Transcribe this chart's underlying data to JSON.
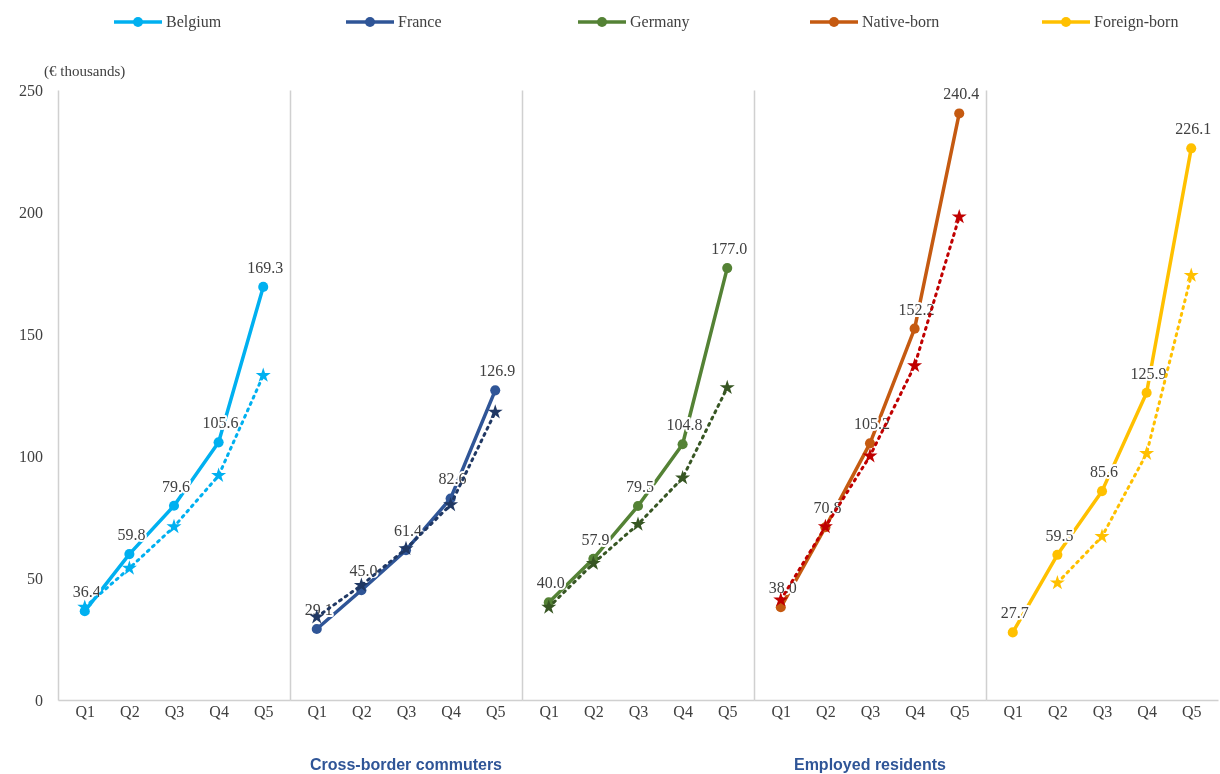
{
  "chart_data": [
    {
      "type": "line",
      "ylabel": "(€ thousands)",
      "categories": [
        "Q1",
        "Q2",
        "Q3",
        "Q4",
        "Q5"
      ],
      "ylim": [
        0,
        250
      ],
      "yticks": [
        0,
        50,
        100,
        150,
        200,
        250
      ],
      "legend": "top",
      "series": [
        {
          "name": "Belgium",
          "color": "#00b0f0",
          "marker": "circle",
          "line_style": "solid",
          "values": [
            36.4,
            59.8,
            79.6,
            105.6,
            169.3
          ],
          "value_labels": [
            "36.4",
            "59.8",
            "79.6",
            "105.6",
            "169.3"
          ]
        },
        {
          "color": "#00b0f0",
          "marker": "star",
          "line_style": "dotted",
          "values": [
            38,
            54,
            71,
            92,
            133
          ]
        }
      ]
    },
    {
      "type": "line",
      "categories": [
        "Q1",
        "Q2",
        "Q3",
        "Q4",
        "Q5"
      ],
      "ylim": [
        0,
        250
      ],
      "yticks": [
        0,
        50,
        100,
        150,
        200,
        250
      ],
      "legend": "top",
      "tick_labels": "x",
      "annotations": [
        "Cross-border commuters"
      ],
      "series": [
        {
          "name": "France",
          "color": "#2f5597",
          "marker": "circle",
          "line_style": "solid",
          "values": [
            29.1,
            45.0,
            61.4,
            82.6,
            126.9
          ],
          "value_labels": [
            "29.1",
            "45.0",
            "61.4",
            "82.6",
            "126.9"
          ]
        },
        {
          "color": "#203864",
          "marker": "star",
          "line_style": "dotted",
          "values": [
            34,
            47,
            62,
            80,
            118
          ]
        }
      ]
    },
    {
      "type": "line",
      "categories": [
        "Q1",
        "Q2",
        "Q3",
        "Q4",
        "Q5"
      ],
      "ylim": [
        0,
        250
      ],
      "yticks": [
        0,
        50,
        100,
        150,
        200,
        250
      ],
      "legend": "top",
      "tick_labels": "x",
      "series": [
        {
          "name": "Germany",
          "color": "#548235",
          "marker": "circle",
          "line_style": "solid",
          "values": [
            40.0,
            57.9,
            79.5,
            104.8,
            177.0
          ],
          "value_labels": [
            "40.0",
            "57.9",
            "79.5",
            "104.8",
            "177.0"
          ]
        },
        {
          "color": "#375623",
          "marker": "star",
          "line_style": "dotted",
          "values": [
            38,
            56,
            72,
            91,
            128
          ]
        }
      ]
    },
    {
      "type": "line",
      "categories": [
        "Q1",
        "Q2",
        "Q3",
        "Q4",
        "Q5"
      ],
      "ylim": [
        0,
        250
      ],
      "yticks": [
        0,
        50,
        100,
        150,
        200,
        250
      ],
      "legend": "top",
      "tick_labels": "x",
      "annotations": [
        "Employed residents"
      ],
      "series": [
        {
          "name": "Native-born",
          "color": "#c55a11",
          "marker": "circle",
          "line_style": "solid",
          "values": [
            38.0,
            70.8,
            105.2,
            152.2,
            240.4
          ],
          "value_labels": [
            "38.0",
            "70.8",
            "105.2",
            "152.2",
            "240.4"
          ]
        },
        {
          "color": "#c00000",
          "marker": "star",
          "line_style": "dotted",
          "values": [
            41,
            71,
            100,
            137,
            198
          ]
        }
      ]
    },
    {
      "type": "line",
      "categories": [
        "Q1",
        "Q2",
        "Q3",
        "Q4",
        "Q5"
      ],
      "ylim": [
        0,
        250
      ],
      "yticks": [
        0,
        50,
        100,
        150,
        200,
        250
      ],
      "legend": "top",
      "tick_labels": "x",
      "series": [
        {
          "name": "Foreign-born",
          "color": "#ffc000",
          "marker": "circle",
          "line_style": "solid",
          "values": [
            27.7,
            59.5,
            85.6,
            125.9,
            226.1
          ],
          "value_labels": [
            "27.7",
            "59.5",
            "85.6",
            "125.9",
            "226.1"
          ]
        },
        {
          "color": "#ffc000",
          "marker": "star",
          "line_style": "dotted",
          "values": [
            null,
            48,
            67,
            101,
            174
          ]
        }
      ]
    }
  ]
}
